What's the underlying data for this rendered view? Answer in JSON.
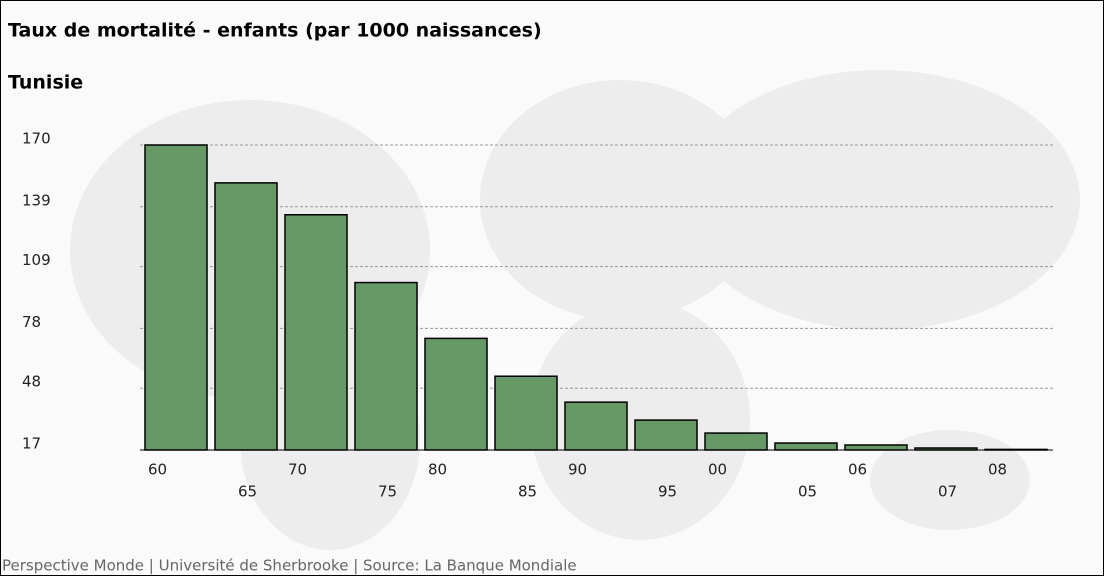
{
  "chart_data": {
    "type": "bar",
    "title": "Taux de mortalité - enfants (par 1000 naissances)",
    "subtitle": "Tunisie",
    "footer": "Perspective Monde | Université de Sherbrooke | Source: La Banque Mondiale",
    "categories": [
      "60",
      "65",
      "70",
      "75",
      "80",
      "85",
      "90",
      "95",
      "00",
      "05",
      "06",
      "07",
      "08"
    ],
    "values": [
      170,
      151,
      135,
      101,
      73,
      54,
      41,
      32,
      25.5,
      20.5,
      19.5,
      18,
      17.3
    ],
    "color": "#669966",
    "ylim": [
      17,
      170
    ],
    "yticks": [
      17,
      48,
      78,
      109,
      139,
      170
    ],
    "grid": true
  }
}
